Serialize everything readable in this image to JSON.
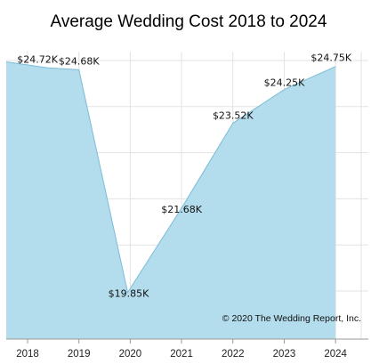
{
  "chart_data": {
    "type": "area",
    "title": "Average Wedding Cost 2018 to 2024",
    "xlabel": "",
    "ylabel": "",
    "x_ticks": [
      "2018",
      "2019",
      "2020",
      "2021",
      "2022",
      "2023",
      "2024"
    ],
    "points": [
      {
        "x": 2017.6,
        "y": 24.85,
        "label": ""
      },
      {
        "x": 2018.4,
        "y": 24.72,
        "label": "$24.72K"
      },
      {
        "x": 2019.0,
        "y": 24.68,
        "label": "$24.68K"
      },
      {
        "x": 2019.95,
        "y": 19.85,
        "label": "$19.85K"
      },
      {
        "x": 2021.0,
        "y": 21.68,
        "label": "$21.68K"
      },
      {
        "x": 2022.0,
        "y": 23.52,
        "label": "$23.52K"
      },
      {
        "x": 2023.0,
        "y": 24.25,
        "label": "$24.25K"
      },
      {
        "x": 2024.0,
        "y": 24.75,
        "label": "$24.75K"
      }
    ],
    "xlim": [
      2017.6,
      2024.5
    ],
    "ylim": [
      19.5,
      25.0
    ],
    "y_gridlines": [
      19.88,
      20.88,
      21.88,
      22.88,
      23.88,
      24.88
    ],
    "x_gridlines": [
      2018,
      2019,
      2020,
      2021,
      2022,
      2023,
      2024,
      2024.5
    ],
    "grid": true,
    "legend": "none",
    "fill_color": "#b3dcec",
    "line_color": "#7cbcd8",
    "grid_color": "#e3e3e3",
    "annotation": "© 2020 The Wedding Report, Inc."
  }
}
